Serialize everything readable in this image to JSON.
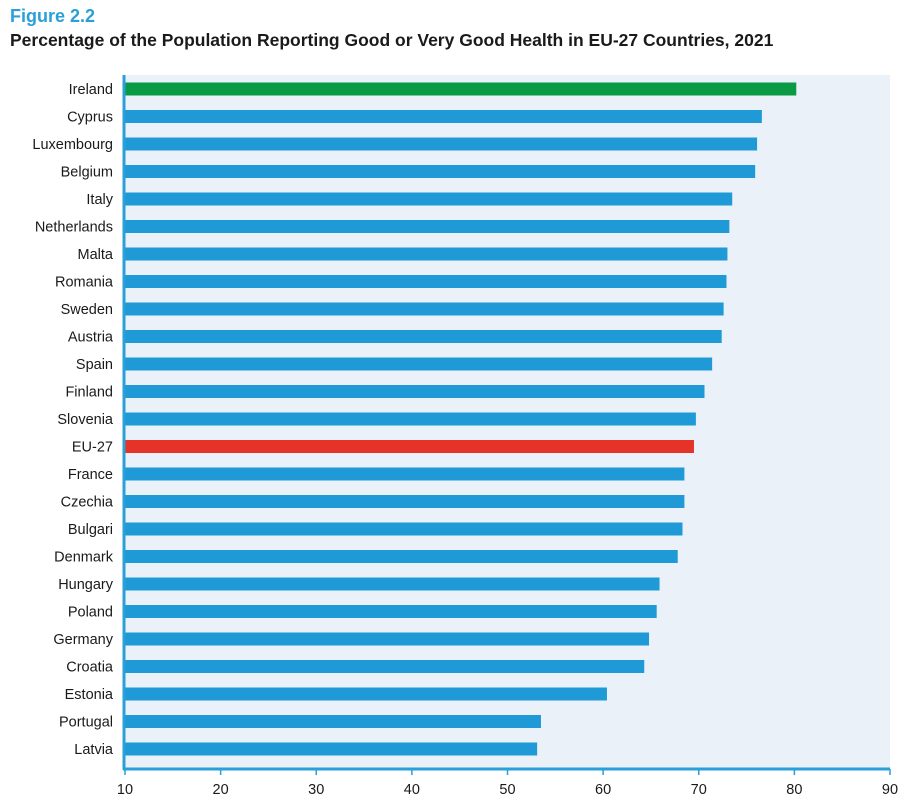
{
  "figure_label": "Figure 2.2",
  "chart_data": {
    "type": "bar",
    "orientation": "horizontal",
    "title": "Percentage of the Population Reporting Good or Very Good Health in EU-27 Countries, 2021",
    "xlabel": "",
    "ylabel": "",
    "xlim": [
      10,
      90
    ],
    "xticks": [
      10,
      20,
      30,
      40,
      50,
      60,
      70,
      80,
      90
    ],
    "categories": [
      "Ireland",
      "Cyprus",
      "Luxembourg",
      "Belgium",
      "Italy",
      "Netherlands",
      "Malta",
      "Romania",
      "Sweden",
      "Austria",
      "Spain",
      "Finland",
      "Slovenia",
      "EU-27",
      "France",
      "Czechia",
      "Bulgari",
      "Denmark",
      "Hungary",
      "Poland",
      "Germany",
      "Croatia",
      "Estonia",
      "Portugal",
      "Latvia"
    ],
    "values": [
      80.2,
      76.6,
      76.1,
      75.9,
      73.5,
      73.2,
      73.0,
      72.9,
      72.6,
      72.4,
      71.4,
      70.6,
      69.7,
      69.5,
      68.5,
      68.5,
      68.3,
      67.8,
      65.9,
      65.6,
      64.8,
      64.3,
      60.4,
      53.5,
      53.1
    ],
    "highlight": {
      "Ireland": "#0a9a44",
      "EU-27": "#e5332a"
    },
    "default_color": "#1f9ad6",
    "plot_background": "#eaf1f9",
    "axis_color": "#2a9fd8"
  }
}
